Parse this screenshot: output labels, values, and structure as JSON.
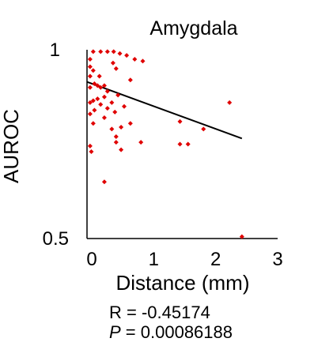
{
  "chart_data": {
    "type": "scatter",
    "title": "Amygdala",
    "xlabel": "Distance (mm)",
    "ylabel": "AUROC",
    "xlim": [
      0,
      3
    ],
    "ylim": [
      0.5,
      1
    ],
    "x_ticks": [
      "0",
      "1",
      "2",
      "3"
    ],
    "y_ticks": [
      "1",
      "0.5"
    ],
    "grid": false,
    "point_color": "#e00000",
    "line_color": "#000000",
    "points": [
      {
        "x": 0.1,
        "y": 0.995
      },
      {
        "x": 0.22,
        "y": 0.995
      },
      {
        "x": 0.33,
        "y": 0.995
      },
      {
        "x": 0.43,
        "y": 0.995
      },
      {
        "x": 0.53,
        "y": 0.99
      },
      {
        "x": 0.64,
        "y": 0.985
      },
      {
        "x": 0.77,
        "y": 0.975
      },
      {
        "x": 0.9,
        "y": 0.97
      },
      {
        "x": 0.05,
        "y": 0.975
      },
      {
        "x": 0.42,
        "y": 0.965
      },
      {
        "x": 0.47,
        "y": 0.95
      },
      {
        "x": 0.05,
        "y": 0.955
      },
      {
        "x": 0.05,
        "y": 0.93
      },
      {
        "x": 0.05,
        "y": 0.9
      },
      {
        "x": 0.05,
        "y": 0.86
      },
      {
        "x": 0.05,
        "y": 0.83
      },
      {
        "x": 0.05,
        "y": 0.745
      },
      {
        "x": 0.1,
        "y": 0.945
      },
      {
        "x": 0.2,
        "y": 0.93
      },
      {
        "x": 0.12,
        "y": 0.91
      },
      {
        "x": 0.17,
        "y": 0.905
      },
      {
        "x": 0.22,
        "y": 0.9
      },
      {
        "x": 0.28,
        "y": 0.905
      },
      {
        "x": 0.33,
        "y": 0.89
      },
      {
        "x": 0.28,
        "y": 0.875
      },
      {
        "x": 0.33,
        "y": 0.845
      },
      {
        "x": 0.4,
        "y": 0.86
      },
      {
        "x": 0.5,
        "y": 0.88
      },
      {
        "x": 0.6,
        "y": 0.85
      },
      {
        "x": 0.7,
        "y": 0.92
      },
      {
        "x": 0.1,
        "y": 0.865
      },
      {
        "x": 0.12,
        "y": 0.84
      },
      {
        "x": 0.17,
        "y": 0.87
      },
      {
        "x": 0.22,
        "y": 0.855
      },
      {
        "x": 0.28,
        "y": 0.82
      },
      {
        "x": 0.45,
        "y": 0.835
      },
      {
        "x": 0.4,
        "y": 0.79
      },
      {
        "x": 0.47,
        "y": 0.77
      },
      {
        "x": 0.55,
        "y": 0.795
      },
      {
        "x": 0.47,
        "y": 0.755
      },
      {
        "x": 0.55,
        "y": 0.735
      },
      {
        "x": 0.1,
        "y": 0.805
      },
      {
        "x": 0.07,
        "y": 0.73
      },
      {
        "x": 0.7,
        "y": 0.805
      },
      {
        "x": 0.87,
        "y": 0.755
      },
      {
        "x": 1.5,
        "y": 0.75
      },
      {
        "x": 1.63,
        "y": 0.75
      },
      {
        "x": 1.5,
        "y": 0.81
      },
      {
        "x": 1.88,
        "y": 0.79
      },
      {
        "x": 2.3,
        "y": 0.86
      },
      {
        "x": 0.28,
        "y": 0.65
      },
      {
        "x": 2.5,
        "y": 0.505
      }
    ],
    "regression_line": {
      "x": [
        0,
        2.5
      ],
      "y": [
        0.915,
        0.765
      ]
    },
    "stats": {
      "r_line": "R = -0.45174",
      "p_symbol": "P",
      "p_value": " = 0.00086188"
    }
  }
}
